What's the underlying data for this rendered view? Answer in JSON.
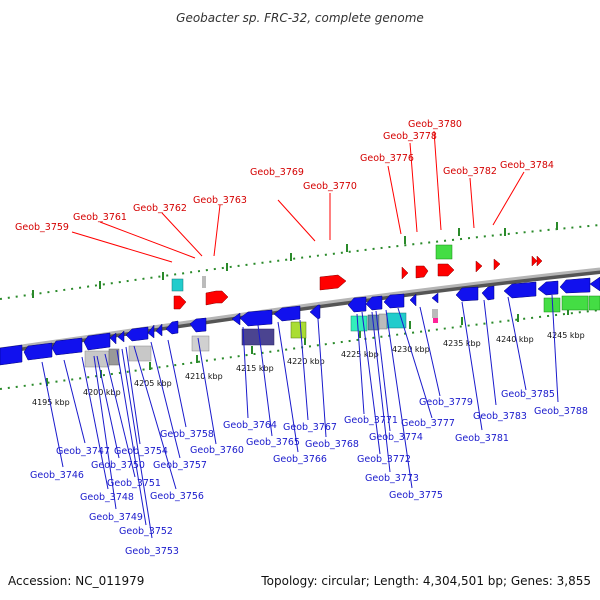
{
  "title": "Geobacter sp. FRC-32, complete genome",
  "footer": {
    "accession": "Accession: NC_011979",
    "topology": "Topology: circular; Length: 4,304,501 bp; Genes: 3,855"
  },
  "colors": {
    "forward_gene": "#ff0000",
    "reverse_gene": "#1111ee",
    "top_label": "#d40000",
    "bottom_label": "#1a1acc",
    "backbone": "#888888",
    "tick": "#2a8a2a"
  },
  "kbp_labels": [
    "4195 kbp",
    "4200 kbp",
    "4205 kbp",
    "4210 kbp",
    "4215 kbp",
    "4220 kbp",
    "4225 kbp",
    "4230 kbp",
    "4235 kbp",
    "4240 kbp",
    "4245 kbp"
  ],
  "top_genes": [
    "Geob_3759",
    "Geob_3761",
    "Geob_3762",
    "Geob_3763",
    "Geob_3769",
    "Geob_3770",
    "Geob_3776",
    "Geob_3778",
    "Geob_3780",
    "Geob_3782",
    "Geob_3784"
  ],
  "bottom_genes": [
    "Geob_3746",
    "Geob_3747",
    "Geob_3748",
    "Geob_3749",
    "Geob_3750",
    "Geob_3751",
    "Geob_3752",
    "Geob_3753",
    "Geob_3754",
    "Geob_3756",
    "Geob_3757",
    "Geob_3758",
    "Geob_3760",
    "Geob_3764",
    "Geob_3765",
    "Geob_3766",
    "Geob_3767",
    "Geob_3768",
    "Geob_3771",
    "Geob_3772",
    "Geob_3773",
    "Geob_3774",
    "Geob_3775",
    "Geob_3777",
    "Geob_3779",
    "Geob_3781",
    "Geob_3783",
    "Geob_3785",
    "Geob_3788"
  ]
}
